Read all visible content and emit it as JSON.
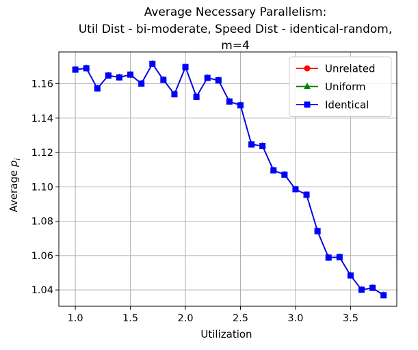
{
  "chart_data": {
    "type": "line",
    "title_lines": [
      "Average Necessary Parallelism:",
      "Util Dist - bi-moderate, Speed Dist - identical-random,",
      "m=4"
    ],
    "xlabel": "Utilization",
    "ylabel_prefix": "Average ",
    "ylabel_var": "p",
    "ylabel_sub": "i",
    "xlim": [
      0.85,
      3.92
    ],
    "ylim": [
      1.0305,
      1.1785
    ],
    "xticks": [
      1.0,
      1.5,
      2.0,
      2.5,
      3.0,
      3.5
    ],
    "xtick_labels": [
      "1.0",
      "1.5",
      "2.0",
      "2.5",
      "3.0",
      "3.5"
    ],
    "yticks": [
      1.04,
      1.06,
      1.08,
      1.1,
      1.12,
      1.14,
      1.16
    ],
    "ytick_labels": [
      "1.04",
      "1.06",
      "1.08",
      "1.10",
      "1.12",
      "1.14",
      "1.16"
    ],
    "grid": true,
    "legend_position": "top-right",
    "x": [
      1.0,
      1.1,
      1.2,
      1.3,
      1.4,
      1.5,
      1.6,
      1.7,
      1.8,
      1.9,
      2.0,
      2.1,
      2.2,
      2.3,
      2.4,
      2.5,
      2.6,
      2.7,
      2.8,
      2.9,
      3.0,
      3.1,
      3.2,
      3.3,
      3.4,
      3.5,
      3.6,
      3.7,
      3.8
    ],
    "series": [
      {
        "name": "Unrelated",
        "color": "#ff0000",
        "marker": "circle",
        "values": [
          1.1682,
          1.169,
          1.1573,
          1.1648,
          1.1637,
          1.1653,
          1.1601,
          1.1716,
          1.1623,
          1.1539,
          1.1697,
          1.1524,
          1.1634,
          1.162,
          1.1496,
          1.1475,
          1.1247,
          1.1238,
          1.1096,
          1.1071,
          1.0986,
          1.0954,
          1.0742,
          1.0588,
          1.0591,
          1.0484,
          1.0401,
          1.0412,
          1.0369
        ]
      },
      {
        "name": "Uniform",
        "color": "#008000",
        "marker": "triangle",
        "values": [
          1.1682,
          1.169,
          1.1573,
          1.1648,
          1.1637,
          1.1653,
          1.1601,
          1.1716,
          1.1623,
          1.1539,
          1.1697,
          1.1524,
          1.1634,
          1.162,
          1.1496,
          1.1475,
          1.1247,
          1.1238,
          1.1096,
          1.1071,
          1.0986,
          1.0954,
          1.0742,
          1.0588,
          1.0591,
          1.0484,
          1.0401,
          1.0412,
          1.0369
        ]
      },
      {
        "name": "Identical",
        "color": "#0000ff",
        "marker": "square",
        "values": [
          1.1682,
          1.169,
          1.1573,
          1.1648,
          1.1637,
          1.1653,
          1.1601,
          1.1716,
          1.1623,
          1.1539,
          1.1697,
          1.1524,
          1.1634,
          1.162,
          1.1496,
          1.1475,
          1.1247,
          1.1238,
          1.1096,
          1.1071,
          1.0986,
          1.0954,
          1.0742,
          1.0588,
          1.0591,
          1.0484,
          1.0401,
          1.0412,
          1.0369
        ]
      }
    ]
  }
}
